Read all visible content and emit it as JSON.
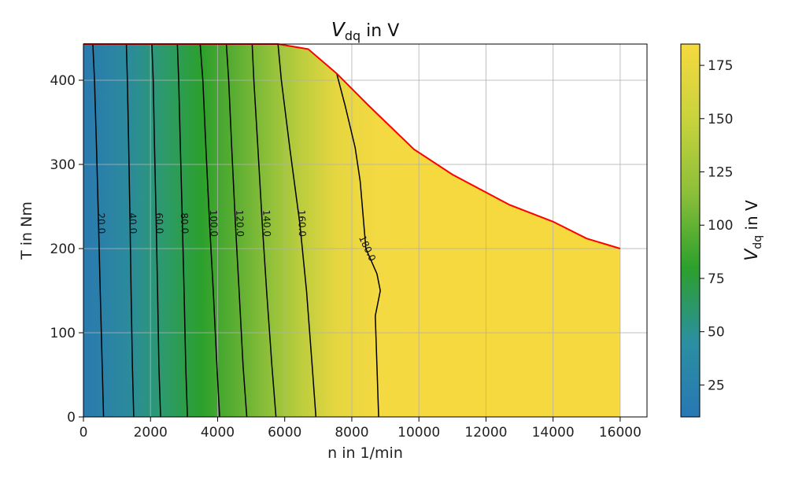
{
  "chart_data": {
    "type": "heatmap",
    "title": {
      "main": "V",
      "sub": "dq",
      "suffix": " in V"
    },
    "xlabel": "n in 1/min",
    "ylabel": "T in Nm",
    "xlim": [
      0,
      16800
    ],
    "ylim": [
      0,
      443
    ],
    "xticks": [
      0,
      2000,
      4000,
      6000,
      8000,
      10000,
      12000,
      14000,
      16000
    ],
    "yticks": [
      0,
      100,
      200,
      300,
      400
    ],
    "grid": true,
    "colorbar": {
      "label_main": "V",
      "label_sub": "dq",
      "label_suffix": " in V",
      "range": [
        10,
        185
      ],
      "ticks": [
        25,
        50,
        75,
        100,
        125,
        150,
        175
      ],
      "colors": [
        "#2878b5",
        "#2b8fa1",
        "#2ca02c",
        "#8cbf3a",
        "#c8d33c",
        "#f6d93f"
      ]
    },
    "boundary": {
      "color": "#ff0000",
      "n": [
        0,
        5800,
        6700,
        7550,
        8500,
        9850,
        11000,
        12700,
        14000,
        15000,
        16000
      ],
      "T": [
        443,
        443,
        437,
        408,
        370,
        318,
        288,
        252,
        232,
        212,
        200
      ]
    },
    "contours": [
      {
        "level": 20.0,
        "label": "20.0",
        "label_at": [
          520,
          230
        ],
        "n": [
          280,
          330,
          390,
          450,
          500,
          560,
          600
        ],
        "T": [
          443,
          400,
          320,
          230,
          150,
          60,
          0
        ]
      },
      {
        "level": 40.0,
        "label": "40.0",
        "label_at": [
          1460,
          230
        ],
        "n": [
          1280,
          1310,
          1350,
          1390,
          1420,
          1460,
          1500
        ],
        "T": [
          443,
          400,
          320,
          230,
          150,
          60,
          0
        ]
      },
      {
        "level": 60.0,
        "label": "60.0",
        "label_at": [
          2250,
          230
        ],
        "n": [
          2040,
          2080,
          2120,
          2170,
          2210,
          2250,
          2300
        ],
        "T": [
          443,
          400,
          320,
          230,
          150,
          60,
          0
        ]
      },
      {
        "level": 80.0,
        "label": "80.0",
        "label_at": [
          3000,
          230
        ],
        "n": [
          2800,
          2840,
          2890,
          2950,
          3000,
          3050,
          3100
        ],
        "T": [
          443,
          400,
          320,
          230,
          150,
          60,
          0
        ]
      },
      {
        "level": 100.0,
        "label": "100.0",
        "label_at": [
          3870,
          230
        ],
        "n": [
          3480,
          3560,
          3650,
          3760,
          3870,
          3980,
          4060
        ],
        "T": [
          443,
          400,
          320,
          230,
          150,
          60,
          0
        ]
      },
      {
        "level": 120.0,
        "label": "120.0",
        "label_at": [
          4650,
          230
        ],
        "n": [
          4260,
          4330,
          4420,
          4530,
          4640,
          4760,
          4870
        ],
        "T": [
          443,
          400,
          320,
          230,
          150,
          60,
          0
        ]
      },
      {
        "level": 140.0,
        "label": "140.0",
        "label_at": [
          5450,
          230
        ],
        "n": [
          5030,
          5080,
          5200,
          5330,
          5460,
          5620,
          5740
        ],
        "T": [
          443,
          400,
          320,
          230,
          150,
          60,
          0
        ]
      },
      {
        "level": 160.0,
        "label": "160.0",
        "label_at": [
          6500,
          230
        ],
        "n": [
          5800,
          5900,
          6150,
          6450,
          6650,
          6820,
          6930
        ],
        "T": [
          443,
          400,
          320,
          230,
          150,
          60,
          0
        ]
      },
      {
        "level": 180.0,
        "label": "180.0",
        "label_at": [
          8450,
          200
        ],
        "n": [
          7550,
          7800,
          8100,
          8250,
          8420,
          8750,
          8850,
          8700,
          8750,
          8800
        ],
        "T": [
          408,
          370,
          320,
          280,
          200,
          170,
          150,
          120,
          60,
          0
        ]
      }
    ]
  }
}
